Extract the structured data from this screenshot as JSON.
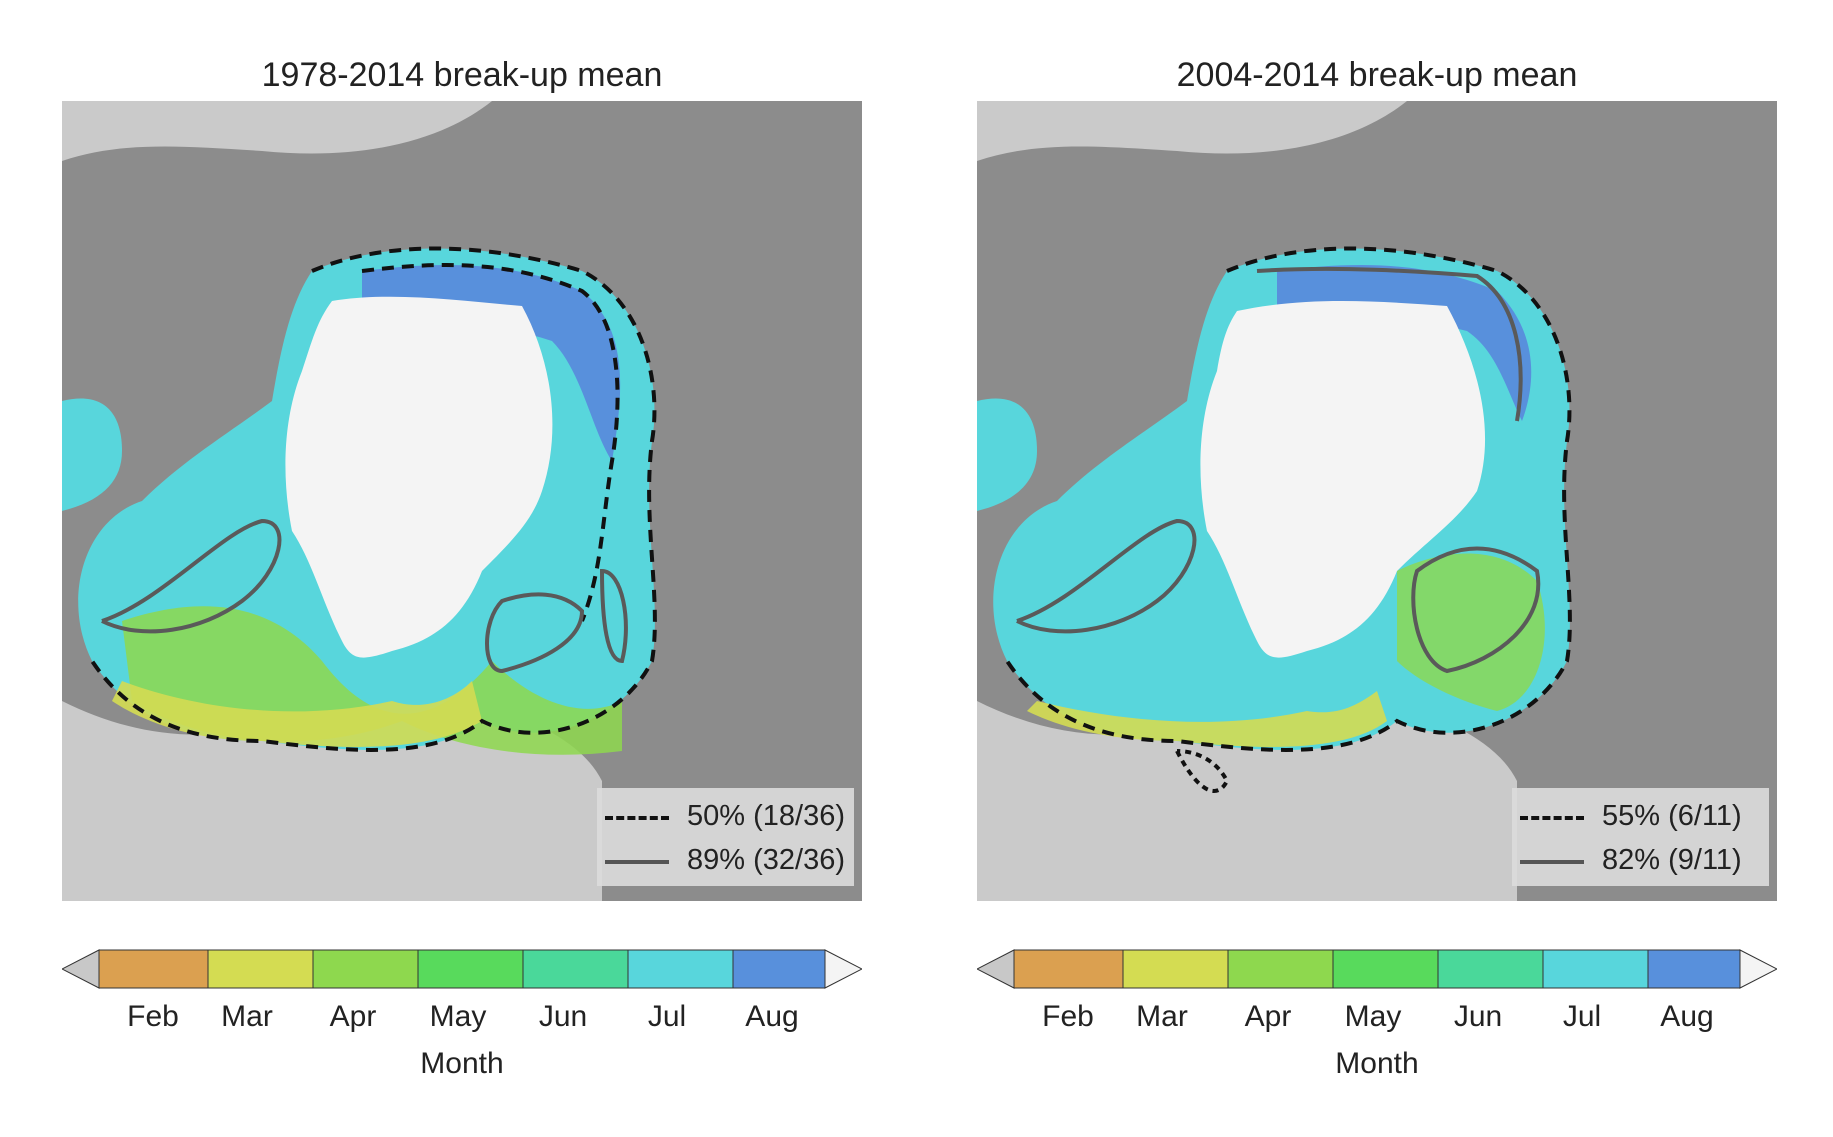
{
  "panels": [
    {
      "title": "1978-2014 break-up mean",
      "legend": [
        {
          "style": "dashed",
          "label": "50% (18/36)"
        },
        {
          "style": "solid",
          "label": "89% (32/36)"
        }
      ]
    },
    {
      "title": "2004-2014 break-up mean",
      "legend": [
        {
          "style": "dashed",
          "label": "55% (6/11)"
        },
        {
          "style": "solid",
          "label": "82% (9/11)"
        }
      ]
    }
  ],
  "colorbar": {
    "label": "Month",
    "ticks": [
      "Feb",
      "Mar",
      "Apr",
      "May",
      "Jun",
      "Jul",
      "Aug"
    ],
    "colors": [
      "#dba050",
      "#d4dc52",
      "#8ed84e",
      "#58da5c",
      "#4ad89a",
      "#58d6dc",
      "#5890dc"
    ],
    "under_color": "#c8c8c8",
    "over_color": "#f4f4f4"
  },
  "map_colors": {
    "land": "#8c8c8c",
    "land_light": "#cacaca",
    "lake": "#bdbdbd",
    "ice_core": "#f4f4f4",
    "contour_dashed": "#111111",
    "contour_solid": "#5a5a5a"
  }
}
